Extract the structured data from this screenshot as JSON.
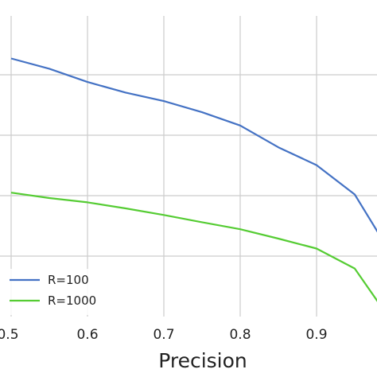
{
  "chart_data": {
    "type": "line",
    "title": "",
    "xlabel": "Precision",
    "ylabel": "",
    "xlim": [
      0.5,
      0.98
    ],
    "ylim": [
      0.0,
      1.0
    ],
    "x_ticks": [
      0.5,
      0.6,
      0.7,
      0.8,
      0.9
    ],
    "x_tick_labels": [
      "0.5",
      "0.6",
      "0.7",
      "0.8",
      "0.9"
    ],
    "y_ticks": [
      0.2,
      0.4,
      0.6,
      0.8
    ],
    "grid": true,
    "legend_position": "lower-left",
    "series": [
      {
        "name": "R=100",
        "color": "#4472c4",
        "x": [
          0.5,
          0.55,
          0.6,
          0.65,
          0.7,
          0.75,
          0.8,
          0.85,
          0.9,
          0.95,
          0.98
        ],
        "y": [
          0.854,
          0.82,
          0.776,
          0.741,
          0.713,
          0.676,
          0.632,
          0.56,
          0.501,
          0.404,
          0.28
        ]
      },
      {
        "name": "R=1000",
        "color": "#55cc33",
        "x": [
          0.5,
          0.55,
          0.6,
          0.65,
          0.7,
          0.75,
          0.8,
          0.85,
          0.9,
          0.95,
          0.98
        ],
        "y": [
          0.41,
          0.392,
          0.378,
          0.358,
          0.336,
          0.312,
          0.289,
          0.258,
          0.225,
          0.159,
          0.05
        ]
      }
    ]
  }
}
